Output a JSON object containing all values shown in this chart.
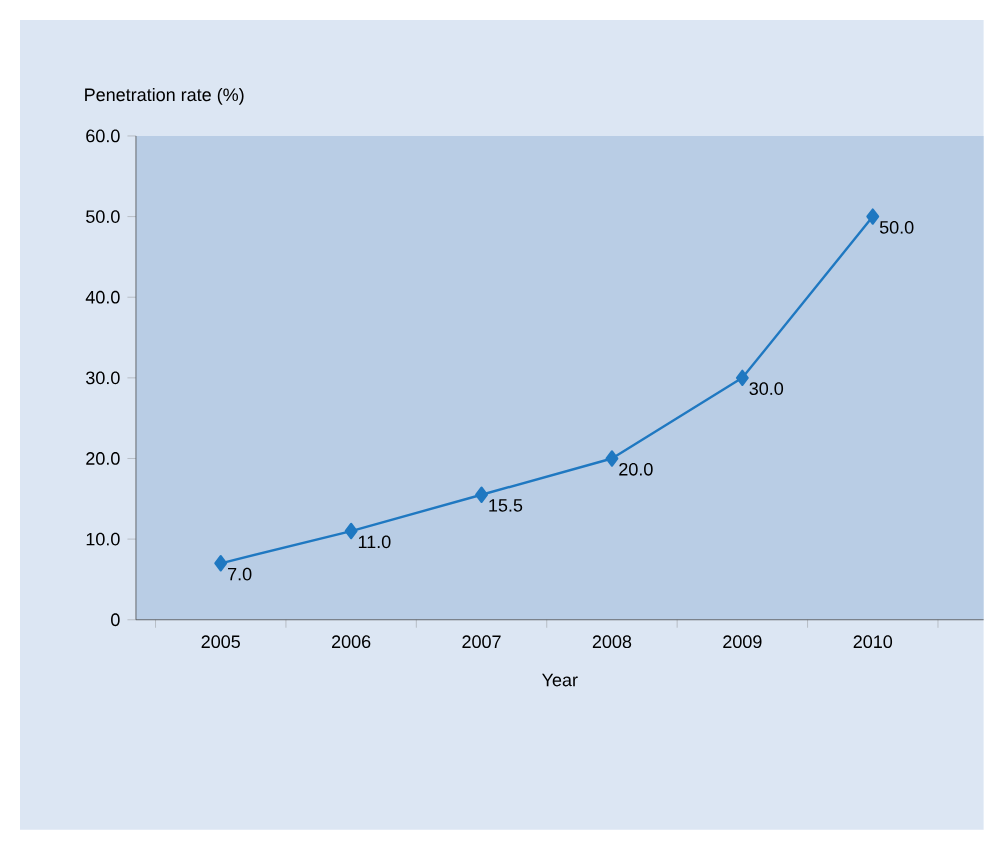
{
  "chart_data": {
    "type": "line",
    "ylabel": "Penetration rate (%)",
    "xlabel": "Year",
    "categories": [
      "2005",
      "2006",
      "2007",
      "2008",
      "2009",
      "2010"
    ],
    "values": [
      7.0,
      11.0,
      15.5,
      20.0,
      30.0,
      50.0
    ],
    "value_labels": [
      "7.0",
      "11.0",
      "15.5",
      "20.0",
      "30.0",
      "50.0"
    ],
    "color": "#1f78c1",
    "marker": "diamond",
    "line_style": "solid",
    "grid": false,
    "ylim": [
      0,
      60
    ],
    "yticks": [
      0,
      {
        "value": 10,
        "label": "10.0"
      },
      {
        "value": 20,
        "label": "20.0"
      },
      {
        "value": 30,
        "label": "30.0"
      },
      {
        "value": 40,
        "label": "40.0"
      },
      {
        "value": 50,
        "label": "50.0"
      },
      {
        "value": 60,
        "label": "60.0"
      }
    ]
  }
}
